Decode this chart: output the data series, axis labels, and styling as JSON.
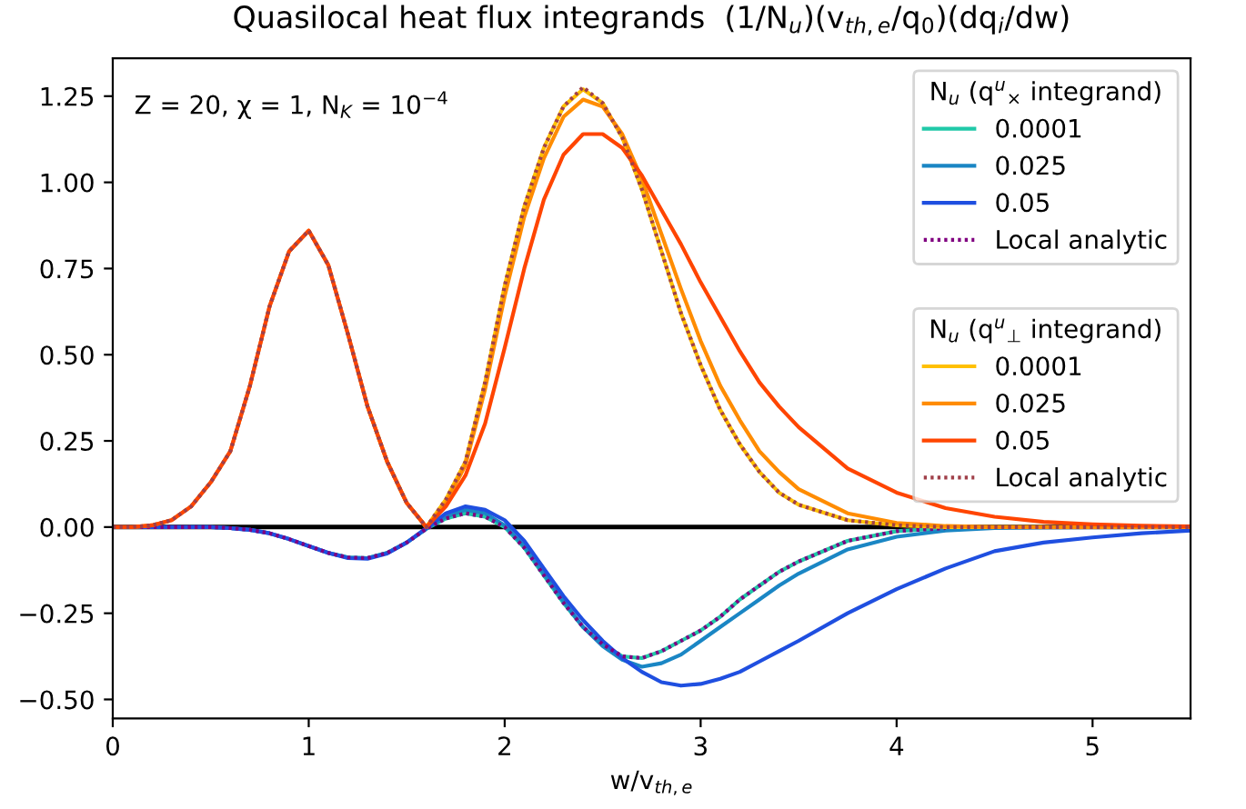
{
  "chart_data": {
    "type": "line",
    "title": "Quasilocal heat flux integrands  (1/N$_{u}$)(v$_{th,e}$/q$_{0}$)(dq$_{i}$/dw)",
    "xlabel": "w/v$_{th,e}$",
    "legend_title": [
      "N$_{u}$ (q$^{u}$$_{×}$ integrand)",
      "N$_{u}$ (q$^{u}$$_{⊥}$ integrand)"
    ],
    "annotations": [
      "Z = 20, χ = 1, N$_{K}$ = 10$^{−4}$"
    ],
    "x": [
      0,
      0.1,
      0.2,
      0.3,
      0.4,
      0.5,
      0.6,
      0.7,
      0.8,
      0.9,
      1.0,
      1.1,
      1.2,
      1.3,
      1.4,
      1.5,
      1.6,
      1.7,
      1.8,
      1.9,
      2.0,
      2.1,
      2.2,
      2.3,
      2.4,
      2.5,
      2.6,
      2.7,
      2.8,
      2.9,
      3.0,
      3.1,
      3.2,
      3.3,
      3.4,
      3.5,
      3.75,
      4.0,
      4.25,
      4.5,
      4.75,
      5.0,
      5.25,
      5.5
    ],
    "series": [
      {
        "name": "0.0001",
        "color": "#20c9a8",
        "line_style": "solid",
        "values": [
          null,
          null,
          null,
          null,
          null,
          null,
          null,
          null,
          null,
          null,
          null,
          -0.075,
          -0.088,
          -0.09,
          -0.075,
          -0.045,
          -0.005,
          0.025,
          0.04,
          0.03,
          0.0,
          -0.06,
          -0.14,
          -0.22,
          -0.29,
          -0.34,
          -0.375,
          -0.38,
          -0.36,
          -0.33,
          -0.3,
          -0.26,
          -0.21,
          -0.17,
          -0.13,
          -0.1,
          -0.04,
          -0.012,
          -0.003,
          null,
          null,
          null,
          null,
          null
        ]
      },
      {
        "name": "0.025",
        "color": "#1a86c4",
        "line_style": "solid",
        "values": [
          null,
          null,
          null,
          null,
          0,
          0,
          -0.003,
          -0.008,
          -0.018,
          -0.035,
          -0.055,
          -0.075,
          -0.088,
          -0.09,
          -0.075,
          -0.045,
          -0.005,
          0.03,
          0.05,
          0.04,
          0.005,
          -0.055,
          -0.135,
          -0.215,
          -0.29,
          -0.345,
          -0.385,
          -0.405,
          -0.395,
          -0.37,
          -0.33,
          -0.29,
          -0.25,
          -0.21,
          -0.17,
          -0.135,
          -0.065,
          -0.028,
          -0.01,
          -0.003,
          -0.001,
          0,
          0,
          0
        ]
      },
      {
        "name": "0.05",
        "color": "#1f4fe0",
        "line_style": "solid",
        "values": [
          0,
          0,
          0,
          0,
          0,
          0,
          -0.003,
          -0.008,
          -0.018,
          -0.035,
          -0.055,
          -0.075,
          -0.09,
          -0.092,
          -0.077,
          -0.045,
          -0.003,
          0.04,
          0.06,
          0.05,
          0.02,
          -0.04,
          -0.12,
          -0.2,
          -0.27,
          -0.33,
          -0.38,
          -0.42,
          -0.45,
          -0.46,
          -0.455,
          -0.44,
          -0.42,
          -0.39,
          -0.36,
          -0.33,
          -0.25,
          -0.18,
          -0.12,
          -0.07,
          -0.045,
          -0.03,
          -0.018,
          -0.01
        ]
      },
      {
        "name": "Local analytic",
        "color": "#800080",
        "line_style": "dotted",
        "values": [
          0,
          0,
          0,
          0,
          0,
          0,
          -0.003,
          -0.008,
          -0.018,
          -0.035,
          -0.055,
          -0.075,
          -0.088,
          -0.09,
          -0.075,
          -0.045,
          -0.005,
          0.025,
          0.04,
          0.03,
          0.0,
          -0.06,
          -0.14,
          -0.22,
          -0.29,
          -0.34,
          -0.375,
          -0.38,
          -0.36,
          -0.33,
          -0.3,
          -0.26,
          -0.21,
          -0.17,
          -0.13,
          -0.1,
          -0.04,
          -0.012,
          -0.003,
          null,
          null,
          null,
          null,
          null
        ]
      },
      {
        "name": "0.0001",
        "color": "#ffc000",
        "line_style": "solid",
        "values": [
          null,
          null,
          null,
          null,
          null,
          null,
          null,
          null,
          null,
          null,
          null,
          null,
          null,
          0.35,
          0.19,
          0.07,
          0.0,
          0.08,
          0.19,
          0.42,
          0.7,
          0.93,
          1.1,
          1.22,
          1.27,
          1.23,
          1.13,
          0.98,
          0.8,
          0.62,
          0.47,
          0.34,
          0.24,
          0.16,
          0.1,
          0.065,
          0.02,
          0.005,
          0,
          0,
          0,
          null,
          null,
          null
        ]
      },
      {
        "name": "0.025",
        "color": "#ff8c00",
        "line_style": "solid",
        "values": [
          0,
          0,
          0.005,
          0.02,
          0.06,
          0.13,
          0.22,
          0.41,
          0.64,
          0.8,
          0.86,
          0.76,
          0.56,
          0.35,
          0.19,
          0.07,
          0.0,
          0.07,
          0.18,
          0.4,
          0.67,
          0.9,
          1.07,
          1.19,
          1.24,
          1.22,
          1.14,
          1.01,
          0.85,
          0.69,
          0.54,
          0.41,
          0.31,
          0.22,
          0.16,
          0.11,
          0.04,
          0.012,
          0.003,
          0,
          0,
          0,
          0,
          0
        ]
      },
      {
        "name": "0.05",
        "color": "#ff4500",
        "line_style": "solid",
        "values": [
          0,
          0,
          0.005,
          0.02,
          0.06,
          0.13,
          0.22,
          0.41,
          0.64,
          0.8,
          0.86,
          0.76,
          0.56,
          0.35,
          0.19,
          0.07,
          0.0,
          0.06,
          0.15,
          0.3,
          0.52,
          0.75,
          0.95,
          1.08,
          1.14,
          1.14,
          1.1,
          1.02,
          0.92,
          0.82,
          0.71,
          0.61,
          0.51,
          0.42,
          0.35,
          0.29,
          0.17,
          0.1,
          0.055,
          0.03,
          0.015,
          0.008,
          0.004,
          0.002
        ]
      },
      {
        "name": "Local analytic",
        "color": "#a0404a",
        "line_style": "dotted",
        "values": [
          0,
          0,
          0.005,
          0.02,
          0.06,
          0.13,
          0.22,
          0.41,
          0.64,
          0.8,
          0.86,
          0.76,
          0.56,
          0.35,
          0.19,
          0.07,
          0.0,
          0.08,
          0.19,
          0.42,
          0.7,
          0.93,
          1.1,
          1.22,
          1.276,
          1.23,
          1.13,
          0.98,
          0.8,
          0.62,
          0.47,
          0.34,
          0.24,
          0.16,
          0.1,
          0.065,
          0.02,
          0.005,
          0,
          0,
          0,
          0,
          0,
          0
        ]
      }
    ],
    "ref_lines": [
      {
        "axis": "y",
        "value": 0,
        "color": "#000000",
        "line_style": "solid"
      }
    ],
    "xlim": [
      0,
      5.5
    ],
    "ylim": [
      -0.555,
      1.36
    ],
    "xticks": [
      0,
      1,
      2,
      3,
      4,
      5
    ],
    "yticks": [
      {
        "value": -0.5,
        "label": "−0.50"
      },
      {
        "value": -0.25,
        "label": "−0.25"
      },
      {
        "value": 0,
        "label": "0.00"
      },
      {
        "value": 0.25,
        "label": "0.25"
      },
      {
        "value": 0.5,
        "label": "0.50"
      },
      {
        "value": 0.75,
        "label": "0.75"
      },
      {
        "value": 1.0,
        "label": "1.00"
      },
      {
        "value": 1.25,
        "label": "1.25"
      }
    ],
    "grid": false,
    "legend": "top right",
    "marker": "none"
  }
}
